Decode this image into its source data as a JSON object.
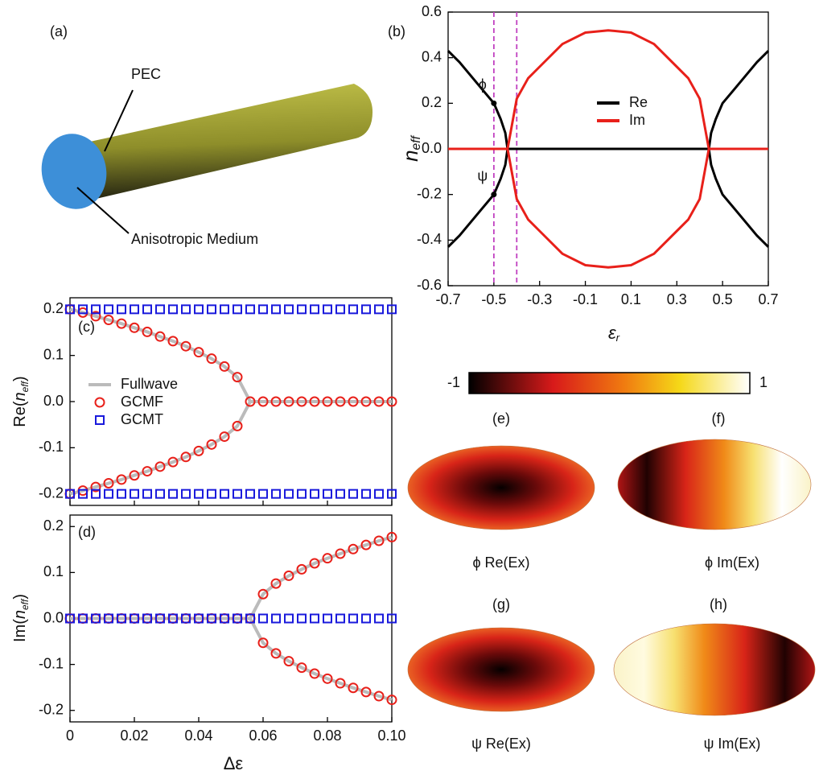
{
  "chart_data": [
    {
      "type": "line",
      "panel": "(b)",
      "xlabel": {
        "main": "ε",
        "sub": "r"
      },
      "ylabel": {
        "main": "n",
        "sub": "eff"
      },
      "x": [
        -0.7,
        -0.65,
        -0.6,
        -0.55,
        -0.5,
        -0.47,
        -0.45,
        -0.44,
        -0.4,
        -0.35,
        -0.3,
        -0.2,
        -0.1,
        0,
        0.1,
        0.2,
        0.3,
        0.35,
        0.4,
        0.44,
        0.45,
        0.47,
        0.5,
        0.55,
        0.6,
        0.65,
        0.7
      ],
      "series": [
        {
          "name": "Re",
          "color": "#000000",
          "values": [
            0.43,
            0.38,
            0.32,
            0.26,
            0.2,
            0.13,
            0.07,
            0,
            0,
            0,
            0,
            0,
            0,
            0,
            0,
            0,
            0,
            0,
            0,
            0,
            0.07,
            0.13,
            0.2,
            0.26,
            0.32,
            0.38,
            0.43
          ]
        },
        {
          "color": "#000000",
          "values": [
            -0.43,
            -0.38,
            -0.32,
            -0.26,
            -0.2,
            -0.13,
            -0.07,
            0,
            null,
            null,
            null,
            null,
            null,
            null,
            null,
            null,
            null,
            null,
            null,
            0,
            -0.07,
            -0.13,
            -0.2,
            -0.26,
            -0.32,
            -0.38,
            -0.43
          ]
        },
        {
          "name": "Im",
          "color": "#e8201a",
          "values": [
            0,
            0,
            0,
            0,
            0,
            0,
            0,
            0,
            0.22,
            0.31,
            0.36,
            0.46,
            0.51,
            0.52,
            0.51,
            0.46,
            0.36,
            0.31,
            0.22,
            0,
            0,
            0,
            0,
            0,
            0,
            0,
            0
          ]
        },
        {
          "color": "#e8201a",
          "values": [
            null,
            null,
            null,
            null,
            null,
            null,
            null,
            0,
            -0.22,
            -0.31,
            -0.36,
            -0.46,
            -0.51,
            -0.52,
            -0.51,
            -0.46,
            -0.36,
            -0.31,
            -0.22,
            0,
            null,
            null,
            null,
            null,
            null,
            null,
            null
          ]
        }
      ],
      "vlines": [
        -0.5,
        -0.4
      ],
      "vline_color": "#c040c0",
      "points": [
        {
          "label": "ϕ",
          "x": -0.5,
          "y": 0.2
        },
        {
          "label": "ψ",
          "x": -0.5,
          "y": -0.2
        }
      ],
      "xlim": [
        -0.7,
        0.7
      ],
      "xticks": [
        -0.7,
        -0.5,
        -0.3,
        -0.1,
        0.1,
        0.3,
        0.5,
        0.7
      ],
      "ylim": [
        -0.6,
        0.6
      ],
      "yticks": [
        0.6,
        0.4,
        0.2,
        {
          "value": 0,
          "label": "0.0"
        },
        -0.2,
        -0.4,
        -0.6
      ]
    },
    {
      "type": "line",
      "panel": "(c)",
      "ylabel": {
        "pre": "Re(",
        "main": "n",
        "sub": "eff",
        "post": ")"
      },
      "x": [
        0,
        0.004,
        0.008,
        0.012,
        0.016,
        0.02,
        0.024,
        0.028,
        0.032,
        0.036,
        0.04,
        0.044,
        0.048,
        0.052,
        0.056,
        0.06,
        0.064,
        0.068,
        0.072,
        0.076,
        0.08,
        0.084,
        0.088,
        0.092,
        0.096,
        0.1
      ],
      "series": [
        {
          "name": "Fullwave",
          "color": "#bbbbbb",
          "values": [
            0.2,
            0.193,
            0.185,
            0.177,
            0.169,
            0.16,
            0.151,
            0.141,
            0.131,
            0.12,
            0.107,
            0.093,
            0.076,
            0.053,
            0,
            0,
            0,
            0,
            0,
            0,
            0,
            0,
            0,
            0,
            0,
            0
          ]
        },
        {
          "color": "#bbbbbb",
          "values": [
            -0.2,
            -0.193,
            -0.185,
            -0.177,
            -0.169,
            -0.16,
            -0.151,
            -0.141,
            -0.131,
            -0.12,
            -0.107,
            -0.093,
            -0.076,
            -0.053,
            0,
            null,
            null,
            null,
            null,
            null,
            null,
            null,
            null,
            null,
            null,
            null
          ]
        },
        {
          "name": "GCMF",
          "color": "#e8201a",
          "marker": "circle",
          "values": [
            0.2,
            0.193,
            0.185,
            0.177,
            0.169,
            0.16,
            0.151,
            0.141,
            0.131,
            0.12,
            0.107,
            0.093,
            0.076,
            0.053,
            0,
            0,
            0,
            0,
            0,
            0,
            0,
            0,
            0,
            0,
            0,
            0
          ]
        },
        {
          "color": "#e8201a",
          "marker": "circle",
          "values": [
            -0.2,
            -0.193,
            -0.185,
            -0.177,
            -0.169,
            -0.16,
            -0.151,
            -0.141,
            -0.131,
            -0.12,
            -0.107,
            -0.093,
            -0.076,
            -0.053,
            null,
            null,
            null,
            null,
            null,
            null,
            null,
            null,
            null,
            null,
            null,
            null
          ]
        },
        {
          "name": "GCMT",
          "color": "#1a1adc",
          "marker": "square",
          "values": [
            0.2,
            0.2,
            0.2,
            0.2,
            0.2,
            0.2,
            0.2,
            0.2,
            0.2,
            0.2,
            0.2,
            0.2,
            0.2,
            0.2,
            0.2,
            0.2,
            0.2,
            0.2,
            0.2,
            0.2,
            0.2,
            0.2,
            0.2,
            0.2,
            0.2,
            0.2
          ]
        },
        {
          "color": "#1a1adc",
          "marker": "square",
          "values": [
            -0.2,
            -0.2,
            -0.2,
            -0.2,
            -0.2,
            -0.2,
            -0.2,
            -0.2,
            -0.2,
            -0.2,
            -0.2,
            -0.2,
            -0.2,
            -0.2,
            -0.2,
            -0.2,
            -0.2,
            -0.2,
            -0.2,
            -0.2,
            -0.2,
            -0.2,
            -0.2,
            -0.2,
            -0.2,
            -0.2
          ]
        }
      ],
      "xlim": [
        0,
        0.1
      ],
      "ylim": [
        -0.225,
        0.225
      ],
      "yticks": [
        0.2,
        0.1,
        {
          "value": 0,
          "label": "0.0"
        },
        -0.1,
        -0.2
      ]
    },
    {
      "type": "line",
      "panel": "(d)",
      "xlabel": {
        "main": "Δε"
      },
      "ylabel": {
        "pre": "Im(",
        "main": "n",
        "sub": "eff",
        "post": ")"
      },
      "x": [
        0,
        0.004,
        0.008,
        0.012,
        0.016,
        0.02,
        0.024,
        0.028,
        0.032,
        0.036,
        0.04,
        0.044,
        0.048,
        0.052,
        0.056,
        0.06,
        0.064,
        0.068,
        0.072,
        0.076,
        0.08,
        0.084,
        0.088,
        0.092,
        0.096,
        0.1
      ],
      "series": [
        {
          "color": "#bbbbbb",
          "values": [
            0,
            0,
            0,
            0,
            0,
            0,
            0,
            0,
            0,
            0,
            0,
            0,
            0,
            0,
            0,
            0.053,
            0.076,
            0.093,
            0.107,
            0.12,
            0.131,
            0.141,
            0.151,
            0.16,
            0.169,
            0.177
          ]
        },
        {
          "color": "#bbbbbb",
          "values": [
            null,
            null,
            null,
            null,
            null,
            null,
            null,
            null,
            null,
            null,
            null,
            null,
            null,
            null,
            0,
            -0.053,
            -0.076,
            -0.093,
            -0.107,
            -0.12,
            -0.131,
            -0.141,
            -0.151,
            -0.16,
            -0.169,
            -0.177
          ]
        },
        {
          "color": "#e8201a",
          "marker": "circle",
          "values": [
            0,
            0,
            0,
            0,
            0,
            0,
            0,
            0,
            0,
            0,
            0,
            0,
            0,
            0,
            0,
            0.053,
            0.076,
            0.093,
            0.107,
            0.12,
            0.131,
            0.141,
            0.151,
            0.16,
            0.169,
            0.177
          ]
        },
        {
          "color": "#e8201a",
          "marker": "circle",
          "values": [
            null,
            null,
            null,
            null,
            null,
            null,
            null,
            null,
            null,
            null,
            null,
            null,
            null,
            null,
            null,
            -0.053,
            -0.076,
            -0.093,
            -0.107,
            -0.12,
            -0.131,
            -0.141,
            -0.151,
            -0.16,
            -0.169,
            -0.177
          ]
        },
        {
          "color": "#1a1adc",
          "marker": "square",
          "values": [
            0,
            0,
            0,
            0,
            0,
            0,
            0,
            0,
            0,
            0,
            0,
            0,
            0,
            0,
            0,
            0,
            0,
            0,
            0,
            0,
            0,
            0,
            0,
            0,
            0,
            0
          ]
        }
      ],
      "xlim": [
        0,
        0.1
      ],
      "xticks": [
        0,
        0.02,
        0.04,
        0.06,
        0.08,
        {
          "value": 0.1,
          "label": "0.10"
        }
      ],
      "ylim": [
        -0.225,
        0.225
      ],
      "yticks": [
        0.2,
        0.1,
        {
          "value": 0,
          "label": "0.0"
        },
        -0.1,
        -0.2
      ]
    }
  ],
  "illustration": {
    "panel": "(a)",
    "labels": [
      "PEC",
      "Anisotropic Medium"
    ]
  },
  "colorbar": {
    "min": -1,
    "max": 1
  },
  "field_maps": [
    {
      "panel": "(e)",
      "caption": "ϕ Re(Ex)"
    },
    {
      "panel": "(f)",
      "caption": "ϕ Im(Ex)"
    },
    {
      "panel": "(g)",
      "caption": "ψ Re(Ex)"
    },
    {
      "panel": "(h)",
      "caption": "ψ Im(Ex)"
    }
  ]
}
